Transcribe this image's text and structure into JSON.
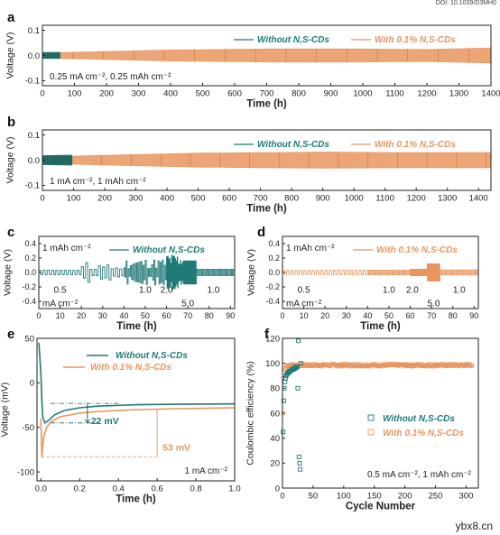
{
  "header": {
    "doi": "DOI: 10.1039/D3MH0"
  },
  "watermark": "ybx8.cn",
  "colors": {
    "teal": "#1f7a78",
    "orange": "#e8955e"
  },
  "legend": {
    "without": "Without N,S-CDs",
    "with": "With 0.1% N,S-CDs"
  },
  "chart_data": [
    {
      "panel": "a",
      "type": "line",
      "xlabel": "Time (h)",
      "ylabel": "Voltage (V)",
      "xlim": [
        0,
        1400
      ],
      "ylim": [
        -0.12,
        0.12
      ],
      "xticks": [
        0,
        100,
        200,
        300,
        400,
        500,
        600,
        700,
        800,
        900,
        1000,
        1100,
        1200,
        1300,
        1400
      ],
      "yticks": [
        -0.1,
        0.0,
        0.1
      ],
      "ytick_labels": [
        "-0.1",
        "0.0",
        "0.1"
      ],
      "annotation": "0.25 mA cm⁻², 0.25 mAh cm⁻²",
      "legend_position": "top-right",
      "series": [
        {
          "name": "Without N,S-CDs",
          "key": "without",
          "x_end": 55,
          "envelope": [
            [
              0,
              0.012
            ],
            [
              55,
              0.012
            ]
          ]
        },
        {
          "name": "With 0.1% N,S-CDs",
          "key": "with",
          "x_end": 1400,
          "envelope": [
            [
              0,
              0.011
            ],
            [
              100,
              0.013
            ],
            [
              400,
              0.022
            ],
            [
              700,
              0.026
            ],
            [
              1000,
              0.026
            ],
            [
              1200,
              0.024
            ],
            [
              1400,
              0.03
            ]
          ]
        }
      ]
    },
    {
      "panel": "b",
      "type": "line",
      "xlabel": "Time (h)",
      "ylabel": "Voltage (V)",
      "xlim": [
        0,
        1440
      ],
      "ylim": [
        -0.12,
        0.12
      ],
      "xticks": [
        0,
        100,
        200,
        300,
        400,
        500,
        600,
        700,
        800,
        900,
        1000,
        1100,
        1200,
        1300,
        1400
      ],
      "yticks": [
        -0.1,
        0.0,
        0.1
      ],
      "ytick_labels": [
        "-0.1",
        "0.0",
        "0.1"
      ],
      "annotation": "1 mA cm⁻², 1 mAh cm⁻²",
      "legend_position": "top-right",
      "series": [
        {
          "name": "Without N,S-CDs",
          "key": "without",
          "x_end": 95,
          "envelope": [
            [
              0,
              0.018
            ],
            [
              95,
              0.02
            ]
          ]
        },
        {
          "name": "With 0.1% N,S-CDs",
          "key": "with",
          "x_end": 1440,
          "envelope": [
            [
              0,
              0.012
            ],
            [
              150,
              0.018
            ],
            [
              500,
              0.028
            ],
            [
              900,
              0.032
            ],
            [
              1200,
              0.03
            ],
            [
              1440,
              0.03
            ]
          ]
        }
      ]
    },
    {
      "panel": "c",
      "type": "line",
      "xlabel": "Time (h)",
      "ylabel": "Voltage (V)",
      "xlim": [
        0,
        92
      ],
      "ylim": [
        -0.5,
        0.5
      ],
      "xticks": [
        0,
        10,
        20,
        30,
        40,
        50,
        60,
        70,
        80,
        90
      ],
      "yticks": [
        -0.4,
        -0.2,
        0.0,
        0.2,
        0.4
      ],
      "ytick_labels": [
        "-0.4",
        "-0.2",
        "0.0",
        "0.2",
        "0.4"
      ],
      "annotation": "1 mAh cm⁻²",
      "rate_labels": [
        {
          "text": "0.5",
          "x": 10,
          "y": -0.28
        },
        {
          "text": "mA cm⁻²",
          "x": 10,
          "y": -0.47
        },
        {
          "text": "1.0",
          "x": 50,
          "y": -0.28
        },
        {
          "text": "2.0",
          "x": 60,
          "y": -0.28
        },
        {
          "text": "5.0",
          "x": 70,
          "y": -0.47
        },
        {
          "text": "1.0",
          "x": 82,
          "y": -0.28
        }
      ],
      "legend_position": "top-right",
      "series": [
        {
          "name": "Without N,S-CDs",
          "key": "without"
        }
      ]
    },
    {
      "panel": "d",
      "type": "line",
      "xlabel": "Time (h)",
      "ylabel": "Voltage (V)",
      "xlim": [
        0,
        92
      ],
      "ylim": [
        -0.5,
        0.5
      ],
      "xticks": [
        0,
        10,
        20,
        30,
        40,
        50,
        60,
        70,
        80,
        90
      ],
      "yticks": [
        -0.4,
        -0.2,
        0.0,
        0.2,
        0.4
      ],
      "ytick_labels": [
        "-0.4",
        "-0.2",
        "0.0",
        "0.2",
        "0.4"
      ],
      "annotation": "1 mAh cm⁻²",
      "rate_labels": [
        {
          "text": "0.5",
          "x": 10,
          "y": -0.28
        },
        {
          "text": "mA cm⁻²",
          "x": 10,
          "y": -0.47
        },
        {
          "text": "1.0",
          "x": 50,
          "y": -0.28
        },
        {
          "text": "2.0",
          "x": 61,
          "y": -0.28
        },
        {
          "text": "5.0",
          "x": 71,
          "y": -0.47
        },
        {
          "text": "1.0",
          "x": 83,
          "y": -0.28
        }
      ],
      "legend_position": "top-right",
      "series": [
        {
          "name": "With 0.1% N,S-CDs",
          "key": "with"
        }
      ]
    },
    {
      "panel": "e",
      "type": "line",
      "xlabel": "Time (h)",
      "ylabel": "Voltage (mV)",
      "xlim": [
        -0.02,
        1.0
      ],
      "ylim": [
        -110,
        50
      ],
      "xticks": [
        0.0,
        0.2,
        0.4,
        0.6,
        0.8,
        1.0
      ],
      "xtick_labels": [
        "0.0",
        "0.2",
        "0.4",
        "0.6",
        "0.8",
        "1.0"
      ],
      "yticks": [
        -100,
        -50,
        0,
        50
      ],
      "ytick_labels": [
        "-100",
        "-50",
        "0",
        "50"
      ],
      "annotation": "1 mA cm⁻²",
      "deltas": [
        {
          "text": "22 mV",
          "from": -45,
          "to": -23,
          "x": 0.24
        },
        {
          "text": "53 mV",
          "from": -83,
          "to": -30,
          "x": 0.6
        }
      ],
      "legend_position": "top-right",
      "series": [
        {
          "name": "Without N,S-CDs",
          "key": "without",
          "x": [
            -0.01,
            0.0,
            0.005,
            0.01,
            0.02,
            0.04,
            0.07,
            0.12,
            0.2,
            0.3,
            0.5,
            0.7,
            1.0
          ],
          "y": [
            45,
            10,
            -20,
            -38,
            -45,
            -42,
            -36,
            -31,
            -28,
            -26,
            -24.5,
            -24,
            -23.5
          ]
        },
        {
          "name": "With 0.1% N,S-CDs",
          "key": "with",
          "x": [
            0.0,
            0.005,
            0.01,
            0.015,
            0.03,
            0.05,
            0.1,
            0.2,
            0.3,
            0.5,
            0.7,
            1.0
          ],
          "y": [
            -40,
            -83,
            -70,
            -60,
            -50,
            -44,
            -38,
            -34,
            -32,
            -30,
            -29,
            -28
          ]
        }
      ]
    },
    {
      "panel": "f",
      "type": "scatter",
      "xlabel": "Cycle Number",
      "ylabel": "Coulombic efficiency (%)",
      "xlim": [
        0,
        320
      ],
      "ylim": [
        0,
        120
      ],
      "xticks": [
        0,
        50,
        100,
        150,
        200,
        250,
        300
      ],
      "yticks": [
        0,
        20,
        40,
        60,
        80,
        100,
        120
      ],
      "ytick_labels": [
        "0",
        "20",
        "40",
        "60",
        "80",
        "100",
        "120"
      ],
      "annotation": "0.5 mA cm⁻², 1 mAh cm⁻²",
      "legend_position": "center-right",
      "series": [
        {
          "name": "Without N,S-CDs",
          "key": "without",
          "x": [
            1,
            2,
            3,
            4,
            5,
            6,
            7,
            8,
            9,
            10,
            11,
            12,
            13,
            14,
            15,
            16,
            17,
            18,
            19,
            20,
            21,
            22,
            23,
            24,
            25,
            26,
            27,
            28,
            29,
            30
          ],
          "y": [
            45,
            70,
            80,
            85,
            88,
            90,
            91,
            92,
            92,
            93,
            93,
            94,
            94,
            94,
            95,
            95,
            95,
            95,
            96,
            96,
            96,
            97,
            97,
            97,
            80,
            118,
            25,
            20,
            15,
            100
          ]
        },
        {
          "name": "With 0.1% N,S-CDs",
          "key": "with",
          "x_range": [
            1,
            310
          ],
          "y_mean": 98.5,
          "y_start": [
            60,
            88,
            93,
            95,
            96,
            97
          ]
        }
      ]
    }
  ]
}
